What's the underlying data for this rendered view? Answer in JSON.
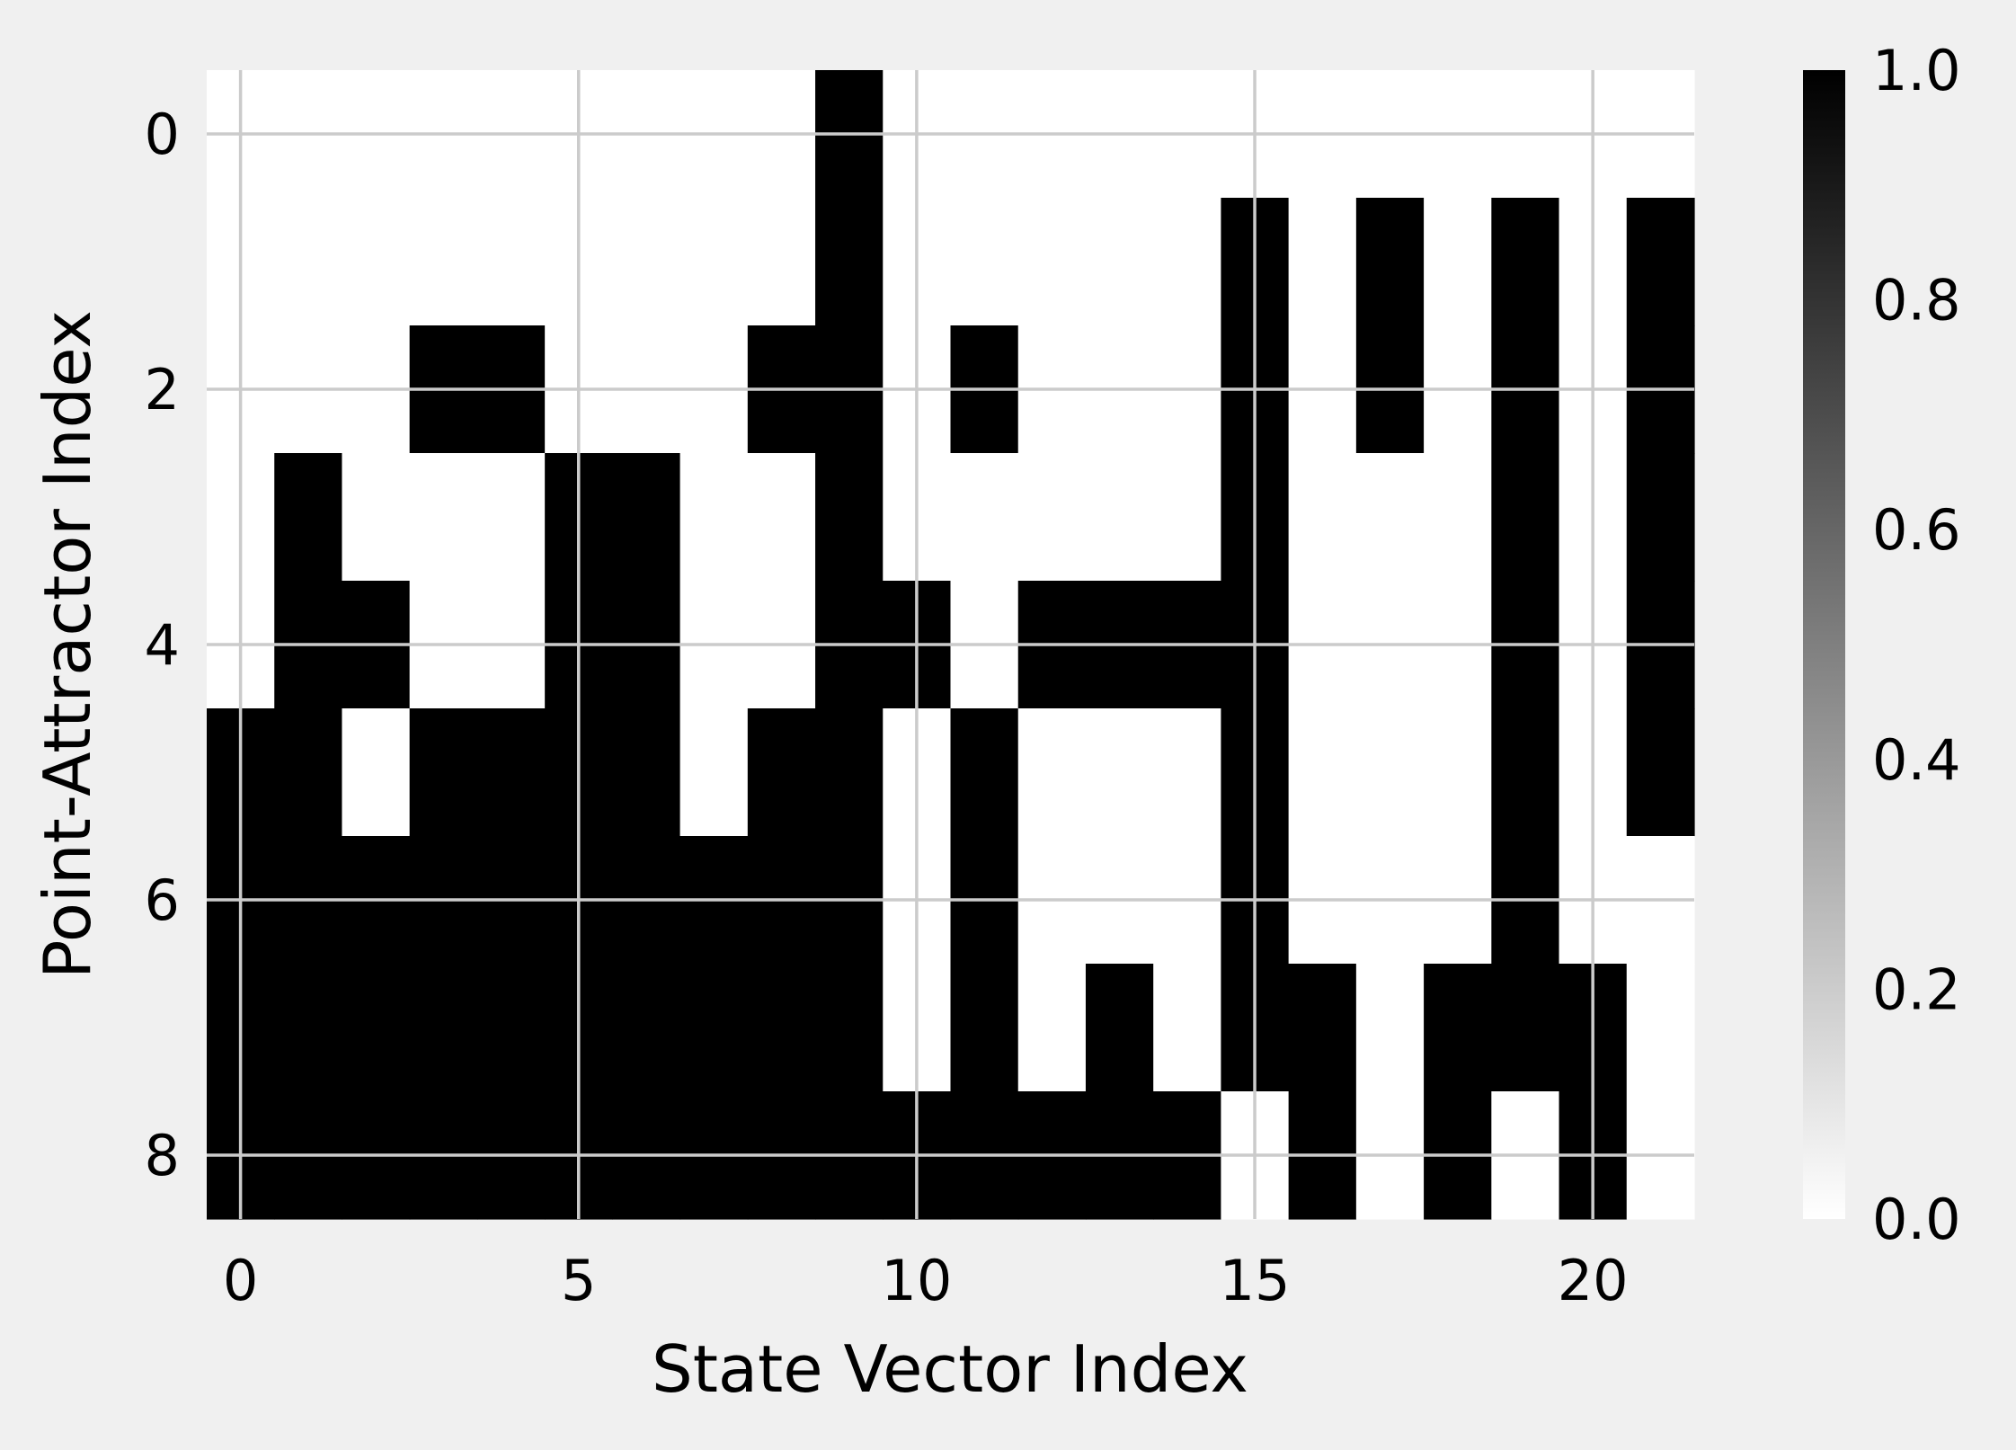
{
  "chart_data": {
    "type": "heatmap",
    "title": "",
    "xlabel": "State Vector Index",
    "ylabel": "Point-Attractor Index",
    "x_ticks": [
      0,
      5,
      10,
      15,
      20
    ],
    "y_ticks": [
      0,
      2,
      4,
      6,
      8
    ],
    "x_range": [
      -0.5,
      21.5
    ],
    "y_range": [
      -0.5,
      8.5
    ],
    "y_inverted": true,
    "grid": true,
    "colormap": "binary",
    "color_low": "#ffffff",
    "color_high": "#000000",
    "colorbar": {
      "ticks": [
        "0.0",
        "0.2",
        "0.4",
        "0.6",
        "0.8",
        "1.0"
      ],
      "range": [
        0,
        1
      ]
    },
    "matrix": [
      [
        0,
        0,
        0,
        0,
        0,
        0,
        0,
        0,
        0,
        1,
        0,
        0,
        0,
        0,
        0,
        0,
        0,
        0,
        0,
        0,
        0,
        0
      ],
      [
        0,
        0,
        0,
        0,
        0,
        0,
        0,
        0,
        0,
        1,
        0,
        0,
        0,
        0,
        0,
        1,
        0,
        1,
        0,
        1,
        0,
        1
      ],
      [
        0,
        0,
        0,
        1,
        1,
        0,
        0,
        0,
        1,
        1,
        0,
        1,
        0,
        0,
        0,
        1,
        0,
        1,
        0,
        1,
        0,
        1
      ],
      [
        0,
        1,
        0,
        0,
        0,
        1,
        1,
        0,
        0,
        1,
        0,
        0,
        0,
        0,
        0,
        1,
        0,
        0,
        0,
        1,
        0,
        1
      ],
      [
        0,
        1,
        1,
        0,
        0,
        1,
        1,
        0,
        0,
        1,
        1,
        0,
        1,
        1,
        1,
        1,
        0,
        0,
        0,
        1,
        0,
        1
      ],
      [
        1,
        1,
        0,
        1,
        1,
        1,
        1,
        0,
        1,
        1,
        0,
        1,
        0,
        0,
        0,
        1,
        0,
        0,
        0,
        1,
        0,
        1
      ],
      [
        1,
        1,
        1,
        1,
        1,
        1,
        1,
        1,
        1,
        1,
        0,
        1,
        0,
        0,
        0,
        1,
        0,
        0,
        0,
        1,
        0,
        0
      ],
      [
        1,
        1,
        1,
        1,
        1,
        1,
        1,
        1,
        1,
        1,
        0,
        1,
        0,
        1,
        0,
        1,
        1,
        0,
        1,
        1,
        1,
        0
      ],
      [
        1,
        1,
        1,
        1,
        1,
        1,
        1,
        1,
        1,
        1,
        1,
        1,
        1,
        1,
        1,
        0,
        1,
        0,
        1,
        0,
        1,
        0
      ]
    ]
  }
}
